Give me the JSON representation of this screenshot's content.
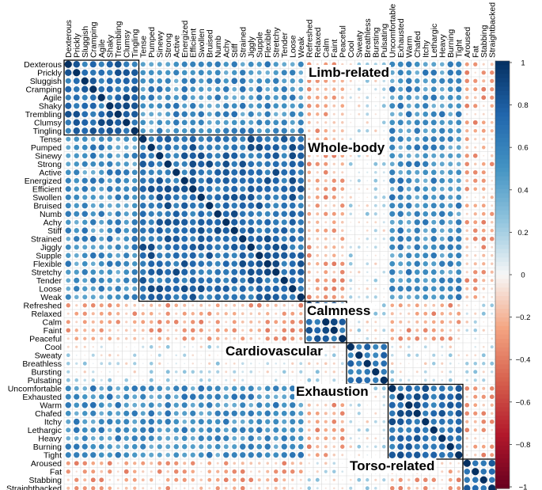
{
  "chart_data": {
    "type": "heatmap",
    "variables": [
      "Dexterous",
      "Prickly",
      "Sluggish",
      "Cramping",
      "Agile",
      "Shaky",
      "Trembling",
      "Clumsy",
      "Tingling",
      "Tense",
      "Pumped",
      "Sinewy",
      "Strong",
      "Active",
      "Energized",
      "Efficient",
      "Swollen",
      "Bruised",
      "Numb",
      "Achy",
      "Stiff",
      "Strained",
      "Jiggly",
      "Supple",
      "Flexible",
      "Stretchy",
      "Tender",
      "Loose",
      "Weak",
      "Refreshed",
      "Relaxed",
      "Calm",
      "Faint",
      "Peaceful",
      "Cool",
      "Sweaty",
      "Breathless",
      "Bursting",
      "Pulsating",
      "Uncomfortable",
      "Exhausted",
      "Warm",
      "Chafed",
      "Itchy",
      "Lethargic",
      "Heavy",
      "Burning",
      "Tight",
      "Aroused",
      "Fat",
      "Stabbing",
      "Straightbacked"
    ],
    "clusters": [
      {
        "name": "Limb-related",
        "start": 0,
        "end": 8
      },
      {
        "name": "Whole-body",
        "start": 9,
        "end": 28
      },
      {
        "name": "Calmness",
        "start": 29,
        "end": 33
      },
      {
        "name": "Cardiovascular",
        "start": 34,
        "end": 38
      },
      {
        "name": "Exhaustion",
        "start": 39,
        "end": 47
      },
      {
        "name": "Torso-related",
        "start": 48,
        "end": 51
      }
    ],
    "colorbar_ticks": [
      "1",
      "0.8",
      "0.6",
      "0.4",
      "0.2",
      "0",
      "−0.2",
      "−0.4",
      "−0.6",
      "−0.8",
      "−1"
    ],
    "colorbar_range": [
      -1,
      1
    ],
    "colors": {
      "positive": "#053061",
      "mid": "#f7f7f7",
      "negative": "#67001f"
    }
  }
}
